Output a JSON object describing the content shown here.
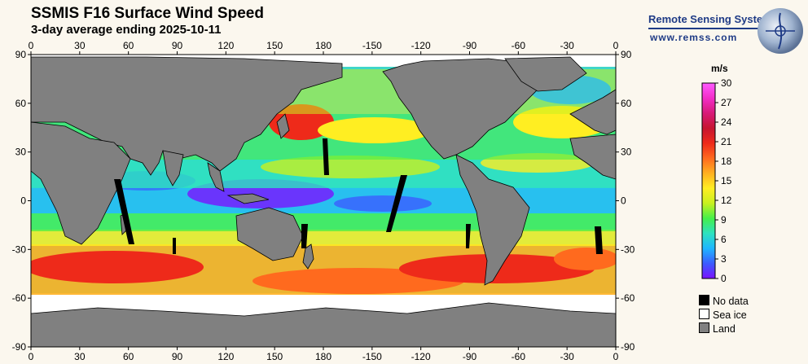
{
  "header": {
    "title": "SSMIS F16 Surface Wind Speed",
    "subtitle": "3-day average ending 2025-10-11"
  },
  "brand": {
    "name": "Remote Sensing Systems",
    "url": "www.remss.com"
  },
  "map": {
    "longitude_ticks": [
      "0",
      "30",
      "60",
      "90",
      "120",
      "150",
      "180",
      "-150",
      "-120",
      "-90",
      "-60",
      "-30",
      "0"
    ],
    "latitude_ticks": [
      "90",
      "60",
      "30",
      "0",
      "-30",
      "-60",
      "-90"
    ]
  },
  "colorbar": {
    "unit": "m/s",
    "ticks": [
      "0",
      "3",
      "6",
      "9",
      "12",
      "15",
      "18",
      "21",
      "24",
      "27",
      "30"
    ],
    "range": [
      0,
      30
    ],
    "stops": [
      "#7a12ff",
      "#3b5cff",
      "#1fb6ff",
      "#2de2c0",
      "#45f04a",
      "#c8f020",
      "#ffee22",
      "#ffb020",
      "#ff6a1e",
      "#ee2a1a",
      "#c71530",
      "#d81a78",
      "#f32ec8",
      "#ff5aff"
    ]
  },
  "legend": {
    "items": [
      {
        "label": "No data",
        "color": "#000000"
      },
      {
        "label": "Sea ice",
        "color": "#ffffff"
      },
      {
        "label": "Land",
        "color": "#808080"
      }
    ]
  }
}
